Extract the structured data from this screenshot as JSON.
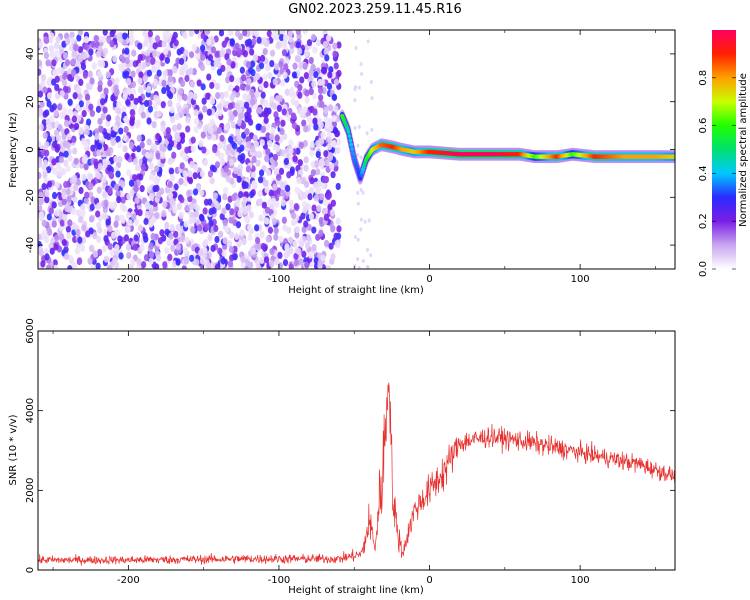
{
  "title": "GN02.2023.259.11.45.R16",
  "chart_data": [
    {
      "type": "heatmap",
      "xlabel": "Height of straight line (km)",
      "ylabel": "Frequency (Hz)",
      "xlim": [
        -260,
        163
      ],
      "ylim": [
        -50,
        50
      ],
      "x_ticks": [
        -200,
        -100,
        0,
        100
      ],
      "y_ticks": [
        -40,
        -20,
        0,
        20,
        40
      ],
      "colorbar": {
        "label": "Normalized spectral amplitude",
        "range": [
          0,
          1
        ],
        "ticks": [
          "0.0",
          "0.2",
          "0.4",
          "0.6",
          "0.8"
        ],
        "colors": [
          "#ffffff",
          "#c9a6f0",
          "#7a1fe6",
          "#2b2bff",
          "#00c8ff",
          "#00e070",
          "#20ff00",
          "#c8ff00",
          "#ffa000",
          "#ff2000",
          "#ff0060"
        ]
      },
      "noise_region": {
        "x": [
          -260,
          -60
        ],
        "freq": [
          -50,
          50
        ],
        "amplitude": 0.15
      },
      "signal_trace": [
        {
          "x": -58,
          "freq": 14,
          "amp": 0.6
        },
        {
          "x": -54,
          "freq": 8,
          "amp": 0.45
        },
        {
          "x": -50,
          "freq": -4,
          "amp": 0.35
        },
        {
          "x": -46,
          "freq": -12,
          "amp": 0.3
        },
        {
          "x": -42,
          "freq": -4,
          "amp": 0.55
        },
        {
          "x": -38,
          "freq": 0,
          "amp": 0.7
        },
        {
          "x": -32,
          "freq": 2,
          "amp": 0.85
        },
        {
          "x": -24,
          "freq": 1,
          "amp": 0.9
        },
        {
          "x": -18,
          "freq": 0,
          "amp": 0.8
        },
        {
          "x": -10,
          "freq": -1,
          "amp": 0.75
        },
        {
          "x": 0,
          "freq": -1,
          "amp": 0.9
        },
        {
          "x": 20,
          "freq": -2,
          "amp": 1.0
        },
        {
          "x": 40,
          "freq": -2,
          "amp": 1.0
        },
        {
          "x": 60,
          "freq": -2,
          "amp": 0.9
        },
        {
          "x": 70,
          "freq": -3,
          "amp": 0.6
        },
        {
          "x": 85,
          "freq": -3,
          "amp": 0.9
        },
        {
          "x": 95,
          "freq": -2,
          "amp": 0.6
        },
        {
          "x": 110,
          "freq": -3,
          "amp": 0.9
        },
        {
          "x": 130,
          "freq": -3,
          "amp": 0.8
        },
        {
          "x": 150,
          "freq": -3,
          "amp": 0.8
        },
        {
          "x": 163,
          "freq": -3,
          "amp": 0.75
        }
      ]
    },
    {
      "type": "line",
      "xlabel": "Height of straight line (km)",
      "ylabel": "SNR (10 * v/v)",
      "xlim": [
        -260,
        163
      ],
      "ylim": [
        0,
        6000
      ],
      "x_ticks": [
        -200,
        -100,
        0,
        100
      ],
      "y_ticks": [
        0,
        2000,
        4000,
        6000
      ],
      "series": [
        {
          "color": "#e8302e",
          "envelope": [
            {
              "x": -260,
              "mean": 250,
              "spread": 180
            },
            {
              "x": -200,
              "mean": 250,
              "spread": 180
            },
            {
              "x": -120,
              "mean": 280,
              "spread": 200
            },
            {
              "x": -60,
              "mean": 280,
              "spread": 200
            },
            {
              "x": -45,
              "mean": 400,
              "spread": 300
            },
            {
              "x": -40,
              "mean": 1200,
              "spread": 900
            },
            {
              "x": -36,
              "mean": 600,
              "spread": 500
            },
            {
              "x": -30,
              "mean": 3000,
              "spread": 2500
            },
            {
              "x": -27,
              "mean": 5000,
              "spread": 1000
            },
            {
              "x": -24,
              "mean": 1500,
              "spread": 1200
            },
            {
              "x": -18,
              "mean": 400,
              "spread": 300
            },
            {
              "x": -10,
              "mean": 1500,
              "spread": 600
            },
            {
              "x": 0,
              "mean": 2000,
              "spread": 700
            },
            {
              "x": 10,
              "mean": 2500,
              "spread": 900
            },
            {
              "x": 20,
              "mean": 3200,
              "spread": 500
            },
            {
              "x": 40,
              "mean": 3350,
              "spread": 450
            },
            {
              "x": 60,
              "mean": 3250,
              "spread": 450
            },
            {
              "x": 80,
              "mean": 3100,
              "spread": 450
            },
            {
              "x": 100,
              "mean": 2950,
              "spread": 400
            },
            {
              "x": 120,
              "mean": 2800,
              "spread": 400
            },
            {
              "x": 140,
              "mean": 2650,
              "spread": 400
            },
            {
              "x": 163,
              "mean": 2350,
              "spread": 350
            }
          ]
        }
      ]
    }
  ]
}
